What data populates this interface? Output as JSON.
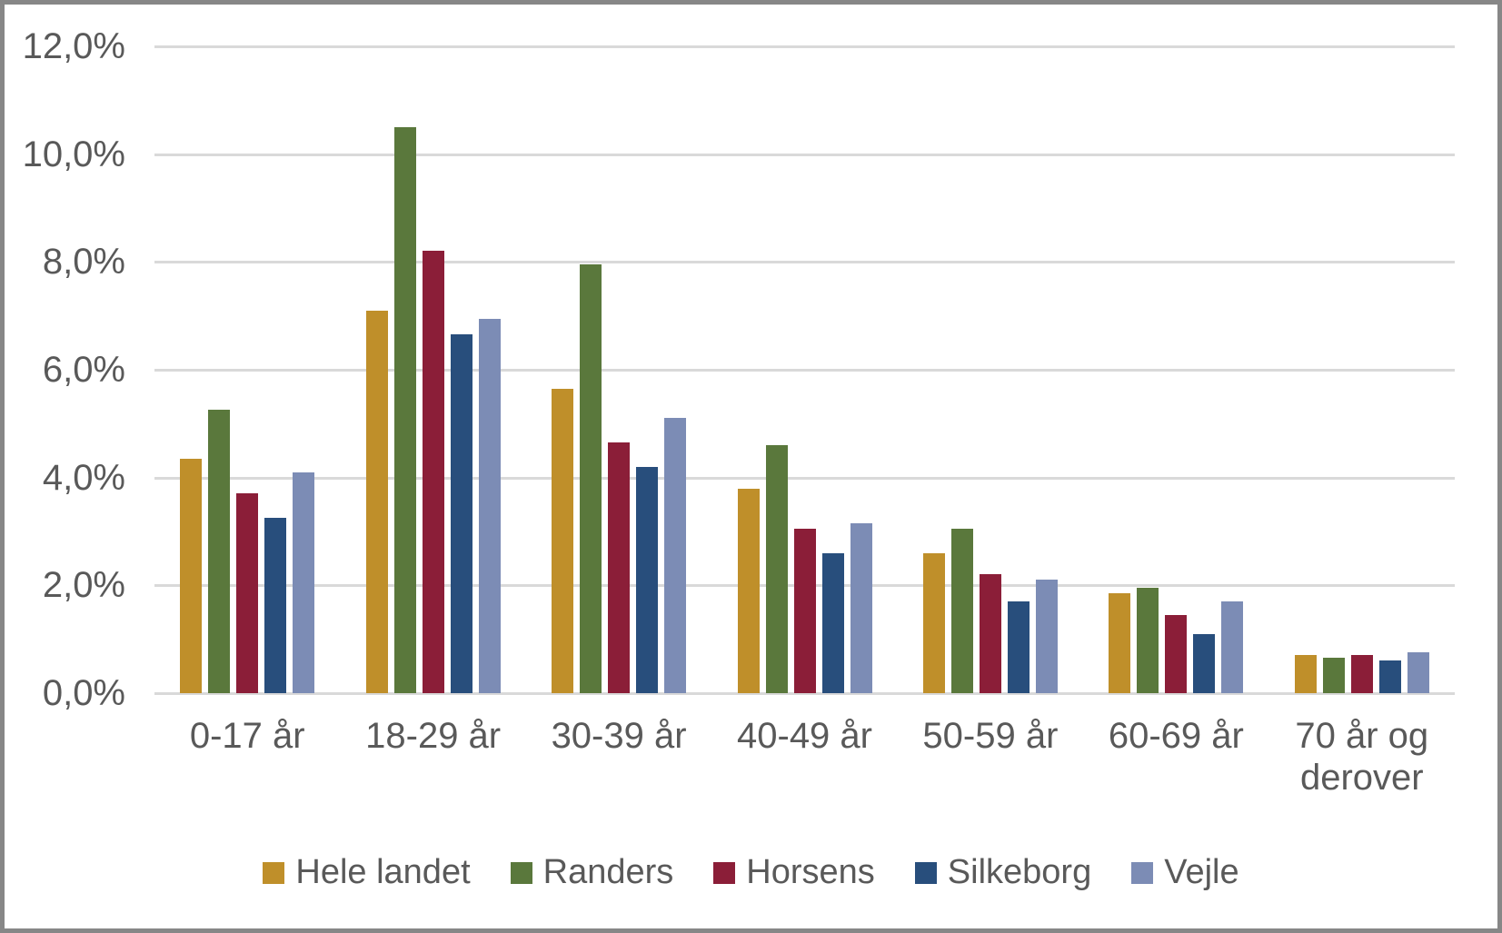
{
  "chart_data": {
    "type": "bar",
    "title": "",
    "xlabel": "",
    "ylabel": "",
    "categories": [
      "0-17 år",
      "18-29 år",
      "30-39 år",
      "40-49 år",
      "50-59 år",
      "60-69 år",
      "70 år og derover"
    ],
    "series": [
      {
        "name": "Hele landet",
        "color": "#BF8F2A",
        "values": [
          4.35,
          7.1,
          5.65,
          3.8,
          2.6,
          1.85,
          0.7
        ]
      },
      {
        "name": "Randers",
        "color": "#5A783C",
        "values": [
          5.25,
          10.5,
          7.95,
          4.6,
          3.05,
          1.95,
          0.65
        ]
      },
      {
        "name": "Horsens",
        "color": "#8B1E38",
        "values": [
          3.7,
          8.2,
          4.65,
          3.05,
          2.2,
          1.45,
          0.7
        ]
      },
      {
        "name": "Silkeborg",
        "color": "#284E7C",
        "values": [
          3.25,
          6.65,
          4.2,
          2.6,
          1.7,
          1.1,
          0.6
        ]
      },
      {
        "name": "Vejle",
        "color": "#7C8CB5",
        "values": [
          4.1,
          6.95,
          5.1,
          3.15,
          2.1,
          1.7,
          0.75
        ]
      }
    ],
    "y_axis": {
      "min": 0,
      "max": 12,
      "step": 2,
      "tick_labels": [
        "12,0%",
        "10,0%",
        "8,0%",
        "6,0%",
        "4,0%",
        "2,0%",
        "0,0%"
      ],
      "number_format": "da-DK percent, one decimal"
    },
    "grid": true,
    "legend_position": "bottom"
  },
  "colors": {
    "gridline": "#D9D9D9",
    "axis_text": "#595959",
    "frame_border": "#878787",
    "background": "#FFFFFF"
  }
}
